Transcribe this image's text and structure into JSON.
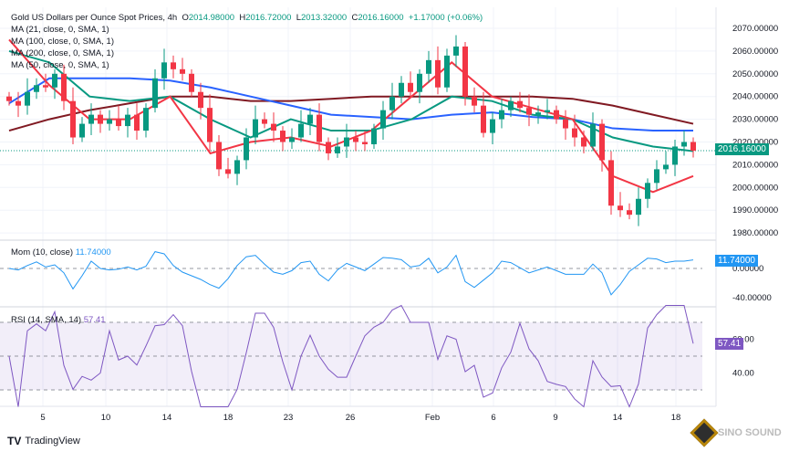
{
  "header": {
    "symbol": "Gold US Dollars per Ounce Spot Prices, 4h",
    "o_label": "O",
    "o": "2014.98000",
    "h_label": "H",
    "h": "2016.72000",
    "l_label": "L",
    "l": "2013.32000",
    "c_label": "C",
    "c": "2016.16000",
    "change": "+1.17000 (+0.06%)"
  },
  "indicators": {
    "ma21": "MA (21, close, 0, SMA, 1)",
    "ma100": "MA (100, close, 0, SMA, 1)",
    "ma200": "MA (200, close, 0, SMA, 1)",
    "ma50": "MA (50, close, 0, SMA, 1)",
    "mom": "Mom (10, close)",
    "mom_value": "11.74000",
    "rsi": "RSI (14, SMA, 14)",
    "rsi_value": "57.41"
  },
  "badges": {
    "price": "2016.16000",
    "mom": "11.74000",
    "rsi": "57.41"
  },
  "footer": {
    "brand": "TradingView",
    "watermark": "SINO SOUND"
  },
  "colors": {
    "up": "#089981",
    "down": "#f23645",
    "ma21": "#f23645",
    "ma50": "#089981",
    "ma100": "#2962ff",
    "ma200": "#801922",
    "mom": "#2196f3",
    "rsi": "#7e57c2"
  },
  "chart_data": {
    "type": "candlestick",
    "title": "Gold US Dollars per Ounce Spot Prices, 4h",
    "price_ticks": [
      2070,
      2060,
      2050,
      2040,
      2030,
      2020,
      2010,
      2000,
      1990,
      1980
    ],
    "price_range": [
      1977,
      2078
    ],
    "mom_ticks": [
      {
        "v": 0,
        "label": "0.00000"
      },
      {
        "v": -40,
        "label": "-40.00000"
      }
    ],
    "rsi_ticks": [
      {
        "v": 60,
        "label": "60.00"
      },
      {
        "v": 40,
        "label": "40.00"
      }
    ],
    "date_ticks": [
      {
        "label": "5",
        "i": 3.7
      },
      {
        "label": "10",
        "i": 10.6
      },
      {
        "label": "14",
        "i": 17.3
      },
      {
        "label": "18",
        "i": 24
      },
      {
        "label": "23",
        "i": 30.6
      },
      {
        "label": "26",
        "i": 37.4
      },
      {
        "label": "Feb",
        "i": 46.4
      },
      {
        "label": "6",
        "i": 53.1
      },
      {
        "label": "9",
        "i": 59.9
      },
      {
        "label": "14",
        "i": 66.7
      },
      {
        "label": "18",
        "i": 73.1
      }
    ],
    "closes": [
      2038,
      2036,
      2042,
      2045,
      2044,
      2050,
      2038,
      2022,
      2028,
      2032,
      2028,
      2030,
      2027,
      2032,
      2025,
      2035,
      2048,
      2055,
      2052,
      2050,
      2042,
      2035,
      2020,
      2008,
      2006,
      2012,
      2022,
      2030,
      2028,
      2025,
      2020,
      2022,
      2028,
      2032,
      2020,
      2015,
      2018,
      2022,
      2020,
      2019,
      2026,
      2034,
      2040,
      2046,
      2042,
      2050,
      2056,
      2044,
      2058,
      2062,
      2040,
      2036,
      2024,
      2030,
      2034,
      2038,
      2035,
      2032,
      2033,
      2034,
      2030,
      2026,
      2022,
      2018,
      2028,
      2012,
      1992,
      1990,
      1988,
      1995,
      2002,
      2008,
      2010,
      2018,
      2020,
      2016.16
    ],
    "ma_sample_step": 5,
    "ma21": [
      2065,
      2045,
      2030,
      2030,
      2040,
      2015,
      2020,
      2022,
      2018,
      2025,
      2040,
      2055,
      2040,
      2035,
      2030,
      2005,
      1998,
      2005
    ],
    "ma50": [
      2060,
      2055,
      2040,
      2038,
      2040,
      2030,
      2022,
      2030,
      2025,
      2025,
      2030,
      2040,
      2038,
      2032,
      2030,
      2022,
      2018,
      2016
    ],
    "ma100": [
      2037,
      2048,
      2048,
      2048,
      2047,
      2044,
      2040,
      2036,
      2032,
      2031,
      2030,
      2032,
      2033,
      2031,
      2030,
      2026,
      2025,
      2025
    ],
    "ma200": [
      2025,
      2030,
      2034,
      2037,
      2040,
      2040,
      2038,
      2038,
      2039,
      2040,
      2040,
      2040,
      2040,
      2040,
      2039,
      2036,
      2032,
      2028
    ],
    "mom_last": 11.74,
    "rsi_last": 57.41,
    "rsi_band": [
      30,
      70
    ]
  }
}
